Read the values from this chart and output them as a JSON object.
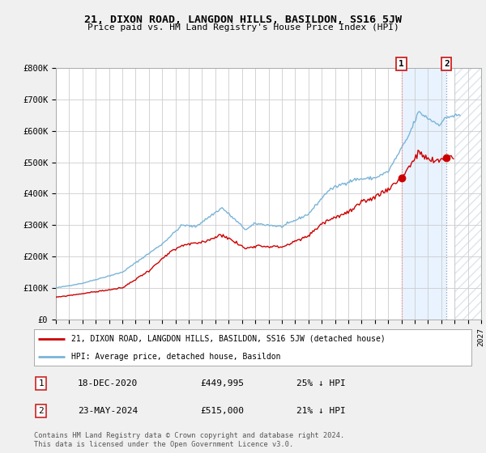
{
  "title": "21, DIXON ROAD, LANGDON HILLS, BASILDON, SS16 5JW",
  "subtitle": "Price paid vs. HM Land Registry's House Price Index (HPI)",
  "ylim": [
    0,
    800000
  ],
  "xlim_start": 1995,
  "xlim_end": 2027,
  "hpi_color": "#7ab4d8",
  "price_color": "#cc0000",
  "marker1_date": 2021.0,
  "marker1_price": 449995,
  "marker2_date": 2024.4,
  "marker2_price": 515000,
  "transaction1_label": "18-DEC-2020",
  "transaction1_price": "£449,995",
  "transaction1_hpi": "25% ↓ HPI",
  "transaction2_label": "23-MAY-2024",
  "transaction2_price": "£515,000",
  "transaction2_hpi": "21% ↓ HPI",
  "legend_line1": "21, DIXON ROAD, LANGDON HILLS, BASILDON, SS16 5JW (detached house)",
  "legend_line2": "HPI: Average price, detached house, Basildon",
  "footer": "Contains HM Land Registry data © Crown copyright and database right 2024.\nThis data is licensed under the Open Government Licence v3.0.",
  "background_color": "#f0f0f0",
  "plot_bg_color": "#ffffff",
  "grid_color": "#cccccc",
  "shaded_region_start": 2021.0,
  "shaded_region_end": 2024.4,
  "future_region_start": 2025.0,
  "future_region_end": 2027.0
}
